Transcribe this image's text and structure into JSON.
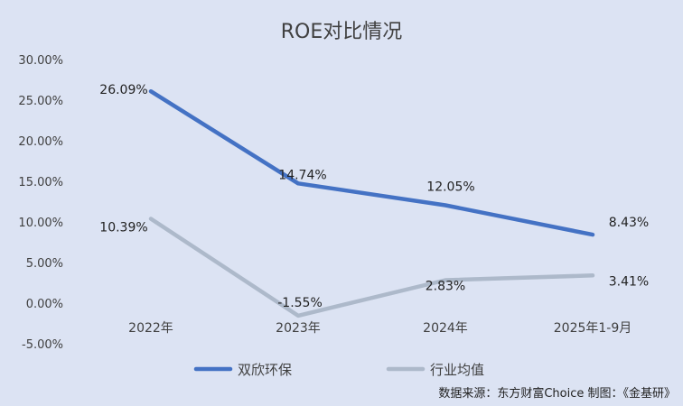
{
  "chart_data": {
    "type": "line",
    "title": "ROE对比情况",
    "categories": [
      "2022年",
      "2023年",
      "2024年",
      "2025年1-9月"
    ],
    "series": [
      {
        "name": "双欣环保",
        "values": [
          26.09,
          14.74,
          12.05,
          8.43
        ],
        "labels": [
          "26.09%",
          "14.74%",
          "12.05%",
          "8.43%"
        ],
        "color": "#4472c4"
      },
      {
        "name": "行业均值",
        "values": [
          10.39,
          -1.55,
          2.83,
          3.41
        ],
        "labels": [
          "10.39%",
          "-1.55%",
          "2.83%",
          "3.41%"
        ],
        "color": "#adb9ca"
      }
    ],
    "ylim": [
      -5,
      30
    ],
    "yticks": [
      "30.00%",
      "25.00%",
      "20.00%",
      "15.00%",
      "10.00%",
      "5.00%",
      "0.00%",
      "-5.00%"
    ],
    "grid": false,
    "legend_position": "bottom"
  },
  "source_note": "数据来源：东方财富Choice    制图：《金基研》"
}
